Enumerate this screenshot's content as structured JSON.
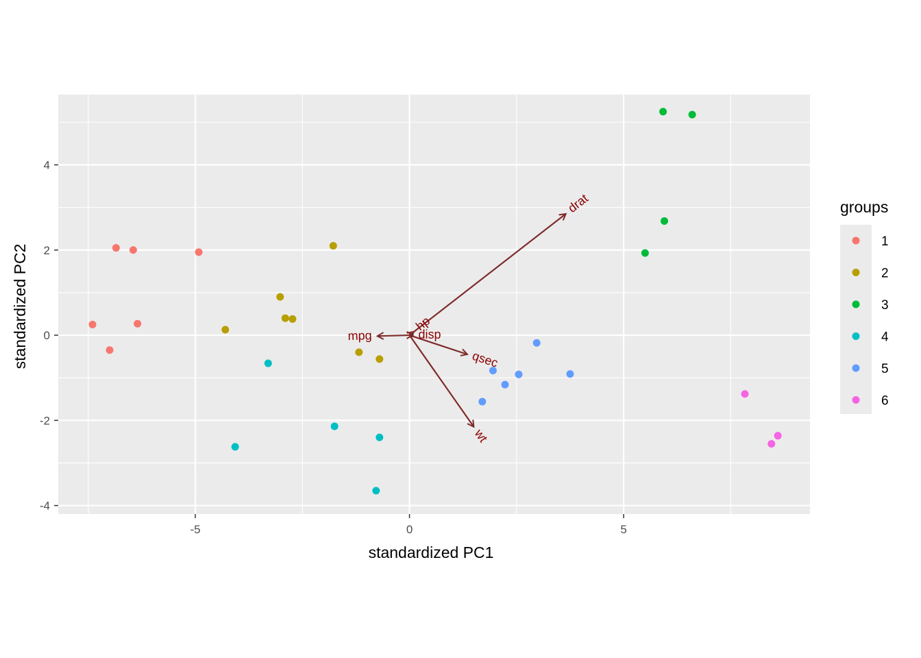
{
  "chart_data": {
    "type": "scatter",
    "xlabel": "standardized PC1",
    "ylabel": "standardized PC2",
    "xlim": [
      -8.2,
      9.35
    ],
    "ylim": [
      -4.2,
      5.65
    ],
    "x_ticks": [
      {
        "value": -5,
        "label": "-5"
      },
      {
        "value": 0,
        "label": "0"
      },
      {
        "value": 5,
        "label": "5"
      }
    ],
    "y_ticks": [
      {
        "value": -4,
        "label": "-4"
      },
      {
        "value": -2,
        "label": "-2"
      },
      {
        "value": 0,
        "label": "0"
      },
      {
        "value": 2,
        "label": "2"
      },
      {
        "value": 4,
        "label": "4"
      }
    ],
    "grid": true,
    "legend": {
      "title": "groups",
      "position": "right",
      "entries": [
        {
          "label": "1",
          "color": "#F8766D"
        },
        {
          "label": "2",
          "color": "#B79F00"
        },
        {
          "label": "3",
          "color": "#00BA38"
        },
        {
          "label": "4",
          "color": "#00BFC4"
        },
        {
          "label": "5",
          "color": "#619CFF"
        },
        {
          "label": "6",
          "color": "#F564E3"
        }
      ]
    },
    "series": [
      {
        "name": "1",
        "color": "#F8766D",
        "points": [
          [
            -7.4,
            0.25
          ],
          [
            -7.0,
            -0.35
          ],
          [
            -6.85,
            2.05
          ],
          [
            -6.45,
            2.0
          ],
          [
            -6.35,
            0.27
          ],
          [
            -4.92,
            1.95
          ]
        ]
      },
      {
        "name": "2",
        "color": "#B79F00",
        "points": [
          [
            -4.3,
            0.13
          ],
          [
            -3.02,
            0.9
          ],
          [
            -2.9,
            0.4
          ],
          [
            -2.73,
            0.38
          ],
          [
            -1.78,
            2.1
          ],
          [
            -1.18,
            -0.4
          ],
          [
            -0.7,
            -0.56
          ]
        ]
      },
      {
        "name": "3",
        "color": "#00BA38",
        "points": [
          [
            5.5,
            1.93
          ],
          [
            5.95,
            2.68
          ],
          [
            5.92,
            5.25
          ],
          [
            6.6,
            5.18
          ]
        ]
      },
      {
        "name": "4",
        "color": "#00BFC4",
        "points": [
          [
            -3.3,
            -0.66
          ],
          [
            -4.07,
            -2.62
          ],
          [
            -1.75,
            -2.14
          ],
          [
            -0.7,
            -2.4
          ],
          [
            -0.78,
            -3.65
          ]
        ]
      },
      {
        "name": "5",
        "color": "#619CFF",
        "points": [
          [
            1.7,
            -1.56
          ],
          [
            1.95,
            -0.83
          ],
          [
            2.23,
            -1.16
          ],
          [
            2.55,
            -0.92
          ],
          [
            2.97,
            -0.18
          ],
          [
            3.75,
            -0.91
          ]
        ]
      },
      {
        "name": "6",
        "color": "#F564E3",
        "points": [
          [
            7.83,
            -1.38
          ],
          [
            8.45,
            -2.55
          ],
          [
            8.6,
            -2.36
          ]
        ]
      }
    ],
    "arrows": {
      "color": "#8B0000",
      "vectors": [
        {
          "label": "drat",
          "x": 3.65,
          "y": 2.85
        },
        {
          "label": "mpg",
          "x": -0.75,
          "y": -0.02
        },
        {
          "label": "hp",
          "x": 0.1,
          "y": 0.08
        },
        {
          "label": "disp",
          "x": 0.08,
          "y": 0.0
        },
        {
          "label": "qsec",
          "x": 1.35,
          "y": -0.45
        },
        {
          "label": "wt",
          "x": 1.5,
          "y": -2.15
        }
      ]
    }
  }
}
